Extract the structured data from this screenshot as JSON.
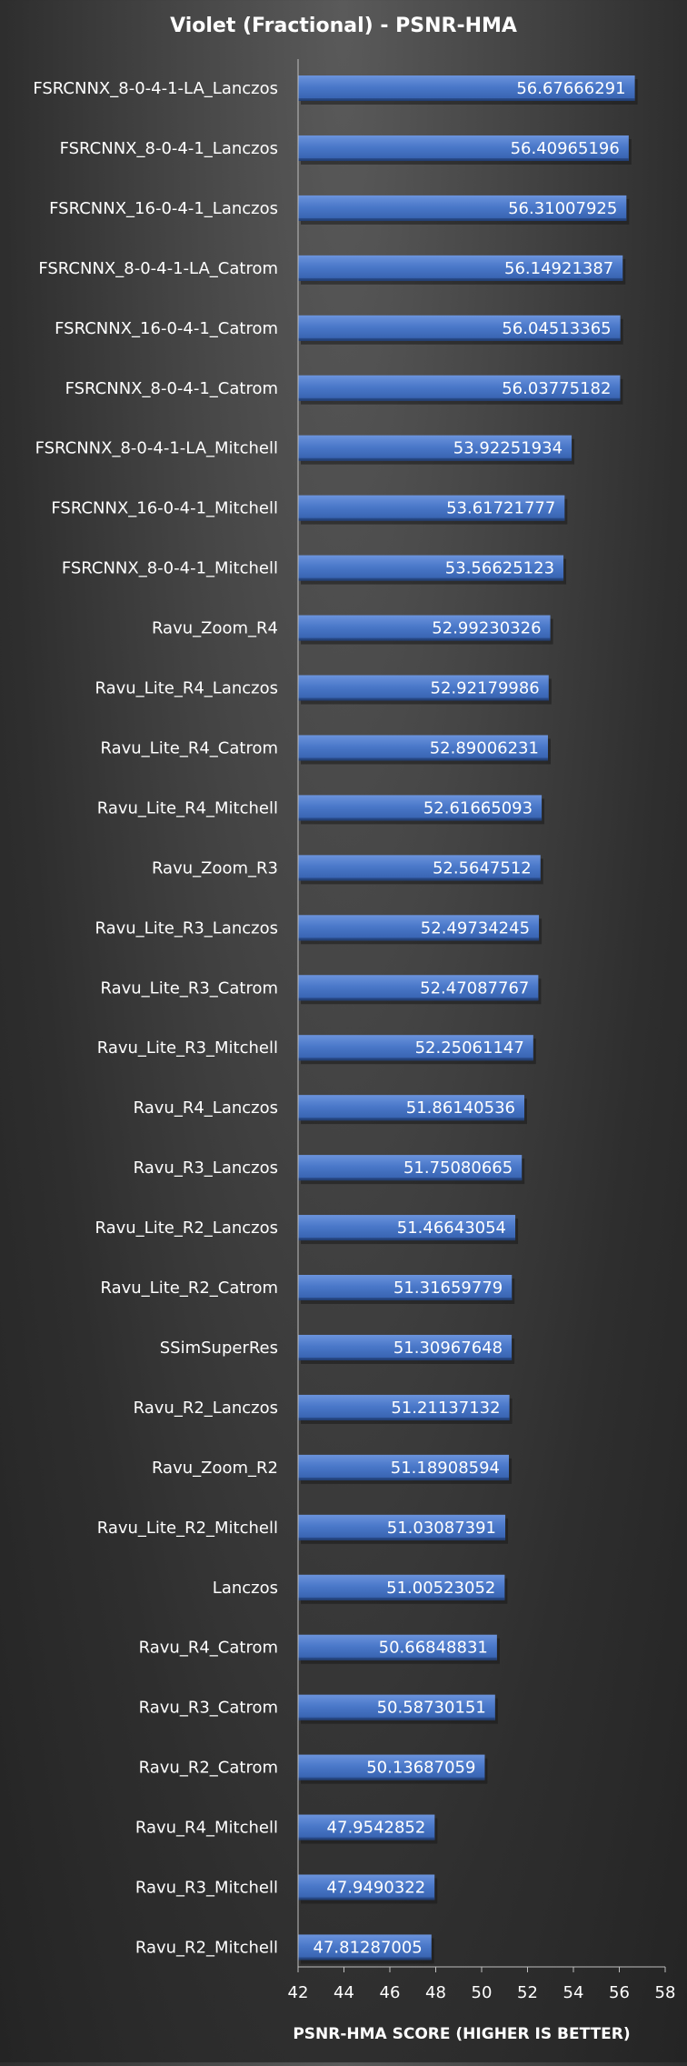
{
  "chart_data": {
    "type": "bar",
    "orientation": "horizontal",
    "title": "Violet (Fractional)  - PSNR-HMA",
    "xlabel": "PSNR-HMA SCORE (HIGHER IS BETTER)",
    "ylabel": "",
    "xlim": [
      42,
      58
    ],
    "xticks": [
      42,
      44,
      46,
      48,
      50,
      52,
      54,
      56,
      58
    ],
    "grid": false,
    "legend": "none",
    "bar_color": "#4472c4",
    "categories": [
      "FSRCNNX_8-0-4-1-LA_Lanczos",
      "FSRCNNX_8-0-4-1_Lanczos",
      "FSRCNNX_16-0-4-1_Lanczos",
      "FSRCNNX_8-0-4-1-LA_Catrom",
      "FSRCNNX_16-0-4-1_Catrom",
      "FSRCNNX_8-0-4-1_Catrom",
      "FSRCNNX_8-0-4-1-LA_Mitchell",
      "FSRCNNX_16-0-4-1_Mitchell",
      "FSRCNNX_8-0-4-1_Mitchell",
      "Ravu_Zoom_R4",
      "Ravu_Lite_R4_Lanczos",
      "Ravu_Lite_R4_Catrom",
      "Ravu_Lite_R4_Mitchell",
      "Ravu_Zoom_R3",
      "Ravu_Lite_R3_Lanczos",
      "Ravu_Lite_R3_Catrom",
      "Ravu_Lite_R3_Mitchell",
      "Ravu_R4_Lanczos",
      "Ravu_R3_Lanczos",
      "Ravu_Lite_R2_Lanczos",
      "Ravu_Lite_R2_Catrom",
      "SSimSuperRes",
      "Ravu_R2_Lanczos",
      "Ravu_Zoom_R2",
      "Ravu_Lite_R2_Mitchell",
      "Lanczos",
      "Ravu_R4_Catrom",
      "Ravu_R3_Catrom",
      "Ravu_R2_Catrom",
      "Ravu_R4_Mitchell",
      "Ravu_R3_Mitchell",
      "Ravu_R2_Mitchell"
    ],
    "values": [
      56.67666291,
      56.40965196,
      56.31007925,
      56.14921387,
      56.04513365,
      56.03775182,
      53.92251934,
      53.61721777,
      53.56625123,
      52.99230326,
      52.92179986,
      52.89006231,
      52.61665093,
      52.5647512,
      52.49734245,
      52.47087767,
      52.25061147,
      51.86140536,
      51.75080665,
      51.46643054,
      51.31659779,
      51.30967648,
      51.21137132,
      51.18908594,
      51.03087391,
      51.00523052,
      50.66848831,
      50.58730151,
      50.13687059,
      47.9542852,
      47.9490322,
      47.81287005
    ],
    "value_labels": [
      "56.67666291",
      "56.40965196",
      "56.31007925",
      "56.14921387",
      "56.04513365",
      "56.03775182",
      "53.92251934",
      "53.61721777",
      "53.56625123",
      "52.99230326",
      "52.92179986",
      "52.89006231",
      "52.61665093",
      "52.5647512",
      "52.49734245",
      "52.47087767",
      "52.25061147",
      "51.86140536",
      "51.75080665",
      "51.46643054",
      "51.31659779",
      "51.30967648",
      "51.21137132",
      "51.18908594",
      "51.03087391",
      "51.00523052",
      "50.66848831",
      "50.58730151",
      "50.13687059",
      "47.9542852",
      "47.9490322",
      "47.81287005"
    ]
  }
}
